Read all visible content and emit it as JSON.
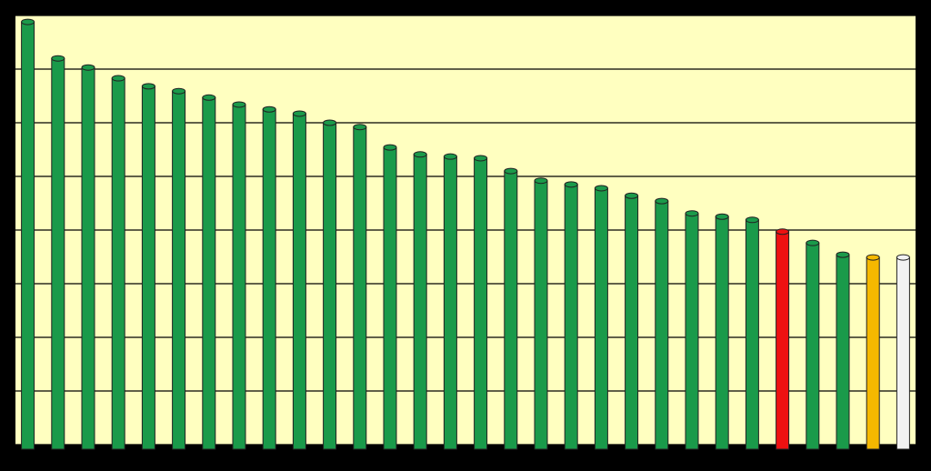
{
  "chart_data": {
    "type": "bar",
    "categories": [
      null,
      null,
      null,
      null,
      null,
      null,
      null,
      null,
      null,
      null,
      null,
      null,
      null,
      null,
      null,
      null,
      null,
      null,
      null,
      null,
      null,
      null,
      null,
      null,
      null,
      null,
      null,
      null,
      null,
      null
    ],
    "values": [
      7.88,
      7.2,
      7.03,
      6.83,
      6.68,
      6.59,
      6.47,
      6.34,
      6.25,
      6.17,
      6.0,
      5.92,
      5.54,
      5.41,
      5.37,
      5.34,
      5.1,
      4.92,
      4.85,
      4.78,
      4.64,
      4.54,
      4.31,
      4.25,
      4.19,
      3.97,
      3.76,
      3.54,
      3.49,
      3.49
    ],
    "colors": [
      "#1a9a4a",
      "#1a9a4a",
      "#1a9a4a",
      "#1a9a4a",
      "#1a9a4a",
      "#1a9a4a",
      "#1a9a4a",
      "#1a9a4a",
      "#1a9a4a",
      "#1a9a4a",
      "#1a9a4a",
      "#1a9a4a",
      "#1a9a4a",
      "#1a9a4a",
      "#1a9a4a",
      "#1a9a4a",
      "#1a9a4a",
      "#1a9a4a",
      "#1a9a4a",
      "#1a9a4a",
      "#1a9a4a",
      "#1a9a4a",
      "#1a9a4a",
      "#1a9a4a",
      "#1a9a4a",
      "#ee1111",
      "#1a9a4a",
      "#1a9a4a",
      "#f5b800",
      "#f2f2f2"
    ],
    "ylim": [
      0,
      8
    ],
    "yticks": [
      0,
      1,
      2,
      3,
      4,
      5,
      6,
      7,
      8
    ],
    "grid": true
  }
}
